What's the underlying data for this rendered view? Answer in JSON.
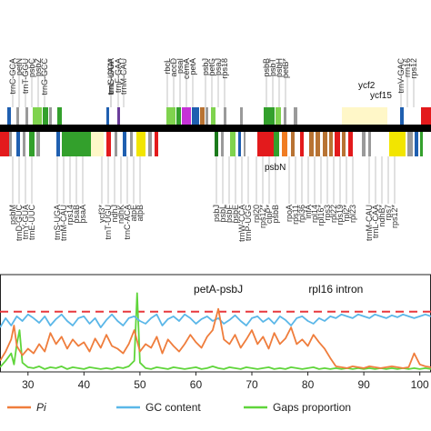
{
  "chart_data": {
    "gene_map": {
      "type": "gene-map",
      "top_labels": [
        "trnC-GCA",
        "petN",
        "trnT-GGU",
        "psbC",
        "psbZ",
        "trnG-GCC",
        "trnL-UAA*",
        "trnF-GAA",
        "trnS-GGA",
        "trnM-CAU",
        "rbcL",
        "accD",
        "psaI",
        "cemA",
        "petA",
        "psbJ",
        "petG",
        "psaJ",
        "rps18",
        "psbB",
        "psbT",
        "psbH",
        "petB*",
        "trnV-GAC",
        "rrn16",
        "rps12"
      ],
      "bottom_labels": [
        "psbM",
        "trnD-GUC",
        "trnY-GUA",
        "trnE-UUC",
        "trnS-UGA",
        "trnM-CAU",
        "rps14",
        "psaB",
        "psaA",
        "ycf3*",
        "trnT-UGU",
        "ndhJ",
        "ndhK",
        "trnC-ACA",
        "atpE",
        "atpB",
        "psbJ",
        "psbL",
        "psbF",
        "psbE",
        "trnW-CCA",
        "trnP-UGG",
        "rpl20",
        "rps12*",
        "clpP*",
        "psbB",
        "rpoA",
        "rps11",
        "rpl36",
        "infA",
        "rpl14",
        "rpl16*",
        "rps3",
        "rpl22",
        "rps19",
        "rpl2*",
        "rpl23",
        "trnM-CAU",
        "trnL-CAA",
        "ndhB*",
        "rps7",
        "rps12*"
      ],
      "float_labels": [
        "ycf2",
        "ycf15",
        "psbN"
      ],
      "colors": {
        "red": "#e31a1c",
        "blue": "#1f5fb0",
        "green": "#33a02c",
        "dark_green": "#1b7a1b",
        "lime": "#7fd34e",
        "yellow": "#f2e500",
        "cream": "#fff7c8",
        "magenta": "#c533d6",
        "brown": "#b87333",
        "orange": "#f07c23",
        "purple": "#6a3d9a",
        "gray": "#9a9a9a",
        "backbone": "#000000"
      }
    },
    "line_chart": {
      "type": "line",
      "x_ticks": [
        30,
        40,
        50,
        60,
        70,
        80,
        90,
        100
      ],
      "x_range": [
        25,
        102
      ],
      "y_range": [
        0,
        0.105
      ],
      "threshold": 0.065,
      "threshold_color": "#e8383d",
      "annotations": [
        {
          "text": "petA-psbJ",
          "x": 64
        },
        {
          "text": "rpl16 intron",
          "x": 85
        }
      ],
      "legend": [
        {
          "name": "Pi",
          "color": "#ef7d3c",
          "italic": true
        },
        {
          "name": "GC content",
          "color": "#5bb7e8",
          "italic": false
        },
        {
          "name": "Gaps proportion",
          "color": "#5fd53a",
          "italic": false
        }
      ],
      "series": [
        {
          "name": "Pi",
          "color": "#ef7d3c",
          "points": [
            [
              25,
              0.012
            ],
            [
              26,
              0.022
            ],
            [
              27,
              0.035
            ],
            [
              27.5,
              0.05
            ],
            [
              28,
              0.028
            ],
            [
              29,
              0.018
            ],
            [
              30,
              0.025
            ],
            [
              31,
              0.02
            ],
            [
              32,
              0.03
            ],
            [
              33,
              0.022
            ],
            [
              34,
              0.042
            ],
            [
              35,
              0.03
            ],
            [
              36,
              0.038
            ],
            [
              37,
              0.025
            ],
            [
              38,
              0.035
            ],
            [
              39,
              0.028
            ],
            [
              40,
              0.032
            ],
            [
              41,
              0.022
            ],
            [
              42,
              0.036
            ],
            [
              43,
              0.026
            ],
            [
              44,
              0.04
            ],
            [
              45,
              0.028
            ],
            [
              46,
              0.025
            ],
            [
              47,
              0.02
            ],
            [
              48,
              0.03
            ],
            [
              49,
              0.045
            ],
            [
              50,
              0.022
            ],
            [
              51,
              0.03
            ],
            [
              52,
              0.026
            ],
            [
              53,
              0.038
            ],
            [
              54,
              0.02
            ],
            [
              55,
              0.035
            ],
            [
              56,
              0.028
            ],
            [
              57,
              0.022
            ],
            [
              58,
              0.03
            ],
            [
              59,
              0.04
            ],
            [
              60,
              0.032
            ],
            [
              61,
              0.026
            ],
            [
              62,
              0.038
            ],
            [
              63,
              0.045
            ],
            [
              64,
              0.068
            ],
            [
              65,
              0.035
            ],
            [
              66,
              0.03
            ],
            [
              67,
              0.04
            ],
            [
              68,
              0.026
            ],
            [
              69,
              0.035
            ],
            [
              70,
              0.045
            ],
            [
              71,
              0.03
            ],
            [
              72,
              0.038
            ],
            [
              73,
              0.025
            ],
            [
              74,
              0.042
            ],
            [
              75,
              0.03
            ],
            [
              76,
              0.036
            ],
            [
              77,
              0.048
            ],
            [
              78,
              0.03
            ],
            [
              79,
              0.035
            ],
            [
              80,
              0.028
            ],
            [
              81,
              0.04
            ],
            [
              82,
              0.032
            ],
            [
              83,
              0.025
            ],
            [
              84,
              0.015
            ],
            [
              85,
              0.006
            ],
            [
              86,
              0.005
            ],
            [
              87,
              0.004
            ],
            [
              88,
              0.006
            ],
            [
              89,
              0.005
            ],
            [
              90,
              0.004
            ],
            [
              91,
              0.006
            ],
            [
              92,
              0.005
            ],
            [
              93,
              0.004
            ],
            [
              94,
              0.005
            ],
            [
              95,
              0.006
            ],
            [
              96,
              0.005
            ],
            [
              97,
              0.004
            ],
            [
              98,
              0.005
            ],
            [
              99,
              0.02
            ],
            [
              100,
              0.008
            ],
            [
              101,
              0.006
            ],
            [
              102,
              0.005
            ]
          ]
        },
        {
          "name": "GC content",
          "color": "#5bb7e8",
          "points": [
            [
              25,
              0.048
            ],
            [
              26,
              0.058
            ],
            [
              27,
              0.05
            ],
            [
              28,
              0.06
            ],
            [
              29,
              0.055
            ],
            [
              30,
              0.062
            ],
            [
              31,
              0.058
            ],
            [
              32,
              0.053
            ],
            [
              33,
              0.06
            ],
            [
              34,
              0.05
            ],
            [
              35,
              0.057
            ],
            [
              36,
              0.062
            ],
            [
              37,
              0.055
            ],
            [
              38,
              0.05
            ],
            [
              39,
              0.058
            ],
            [
              40,
              0.06
            ],
            [
              41,
              0.052
            ],
            [
              42,
              0.058
            ],
            [
              43,
              0.048
            ],
            [
              44,
              0.056
            ],
            [
              45,
              0.062
            ],
            [
              46,
              0.055
            ],
            [
              47,
              0.05
            ],
            [
              48,
              0.058
            ],
            [
              49,
              0.06
            ],
            [
              50,
              0.055
            ],
            [
              51,
              0.052
            ],
            [
              52,
              0.058
            ],
            [
              53,
              0.062
            ],
            [
              54,
              0.05
            ],
            [
              55,
              0.057
            ],
            [
              56,
              0.06
            ],
            [
              57,
              0.055
            ],
            [
              58,
              0.062
            ],
            [
              59,
              0.058
            ],
            [
              60,
              0.052
            ],
            [
              61,
              0.057
            ],
            [
              62,
              0.06
            ],
            [
              63,
              0.055
            ],
            [
              64,
              0.058
            ],
            [
              65,
              0.052
            ],
            [
              66,
              0.056
            ],
            [
              67,
              0.061
            ],
            [
              68,
              0.055
            ],
            [
              69,
              0.05
            ],
            [
              70,
              0.058
            ],
            [
              71,
              0.06
            ],
            [
              72,
              0.054
            ],
            [
              73,
              0.058
            ],
            [
              74,
              0.052
            ],
            [
              75,
              0.06
            ],
            [
              76,
              0.056
            ],
            [
              77,
              0.05
            ],
            [
              78,
              0.058
            ],
            [
              79,
              0.06
            ],
            [
              80,
              0.055
            ],
            [
              81,
              0.052
            ],
            [
              82,
              0.058
            ],
            [
              83,
              0.055
            ],
            [
              84,
              0.06
            ],
            [
              85,
              0.058
            ],
            [
              86,
              0.062
            ],
            [
              87,
              0.06
            ],
            [
              88,
              0.058
            ],
            [
              89,
              0.062
            ],
            [
              90,
              0.06
            ],
            [
              91,
              0.058
            ],
            [
              92,
              0.062
            ],
            [
              93,
              0.06
            ],
            [
              94,
              0.058
            ],
            [
              95,
              0.061
            ],
            [
              96,
              0.059
            ],
            [
              97,
              0.062
            ],
            [
              98,
              0.06
            ],
            [
              99,
              0.058
            ],
            [
              100,
              0.06
            ],
            [
              101,
              0.062
            ],
            [
              102,
              0.06
            ]
          ]
        },
        {
          "name": "Gaps proportion",
          "color": "#5fd53a",
          "points": [
            [
              25,
              0.005
            ],
            [
              26,
              0.012
            ],
            [
              27,
              0.02
            ],
            [
              27.5,
              0.008
            ],
            [
              28,
              0.03
            ],
            [
              28.5,
              0.045
            ],
            [
              29,
              0.01
            ],
            [
              30,
              0.005
            ],
            [
              31,
              0.004
            ],
            [
              32,
              0.006
            ],
            [
              33,
              0.003
            ],
            [
              34,
              0.005
            ],
            [
              35,
              0.004
            ],
            [
              36,
              0.006
            ],
            [
              37,
              0.003
            ],
            [
              38,
              0.005
            ],
            [
              39,
              0.004
            ],
            [
              40,
              0.003
            ],
            [
              41,
              0.005
            ],
            [
              42,
              0.004
            ],
            [
              43,
              0.003
            ],
            [
              44,
              0.004
            ],
            [
              45,
              0.003
            ],
            [
              46,
              0.005
            ],
            [
              47,
              0.004
            ],
            [
              48,
              0.006
            ],
            [
              49,
              0.012
            ],
            [
              49.5,
              0.085
            ],
            [
              50,
              0.01
            ],
            [
              51,
              0.004
            ],
            [
              52,
              0.003
            ],
            [
              53,
              0.005
            ],
            [
              54,
              0.004
            ],
            [
              55,
              0.003
            ],
            [
              56,
              0.005
            ],
            [
              57,
              0.004
            ],
            [
              58,
              0.003
            ],
            [
              59,
              0.004
            ],
            [
              60,
              0.005
            ],
            [
              61,
              0.003
            ],
            [
              62,
              0.004
            ],
            [
              63,
              0.006
            ],
            [
              64,
              0.004
            ],
            [
              65,
              0.003
            ],
            [
              66,
              0.005
            ],
            [
              67,
              0.004
            ],
            [
              68,
              0.003
            ],
            [
              69,
              0.005
            ],
            [
              70,
              0.004
            ],
            [
              71,
              0.003
            ],
            [
              72,
              0.004
            ],
            [
              73,
              0.005
            ],
            [
              74,
              0.003
            ],
            [
              75,
              0.004
            ],
            [
              76,
              0.003
            ],
            [
              77,
              0.005
            ],
            [
              78,
              0.004
            ],
            [
              79,
              0.003
            ],
            [
              80,
              0.004
            ],
            [
              81,
              0.005
            ],
            [
              82,
              0.003
            ],
            [
              83,
              0.004
            ],
            [
              84,
              0.003
            ],
            [
              85,
              0.004
            ],
            [
              86,
              0.003
            ],
            [
              87,
              0.004
            ],
            [
              88,
              0.003
            ],
            [
              89,
              0.004
            ],
            [
              90,
              0.003
            ],
            [
              91,
              0.004
            ],
            [
              92,
              0.003
            ],
            [
              93,
              0.004
            ],
            [
              94,
              0.003
            ],
            [
              95,
              0.004
            ],
            [
              96,
              0.003
            ],
            [
              97,
              0.004
            ],
            [
              98,
              0.003
            ],
            [
              99,
              0.004
            ],
            [
              100,
              0.003
            ],
            [
              101,
              0.004
            ],
            [
              102,
              0.003
            ]
          ]
        }
      ]
    }
  }
}
